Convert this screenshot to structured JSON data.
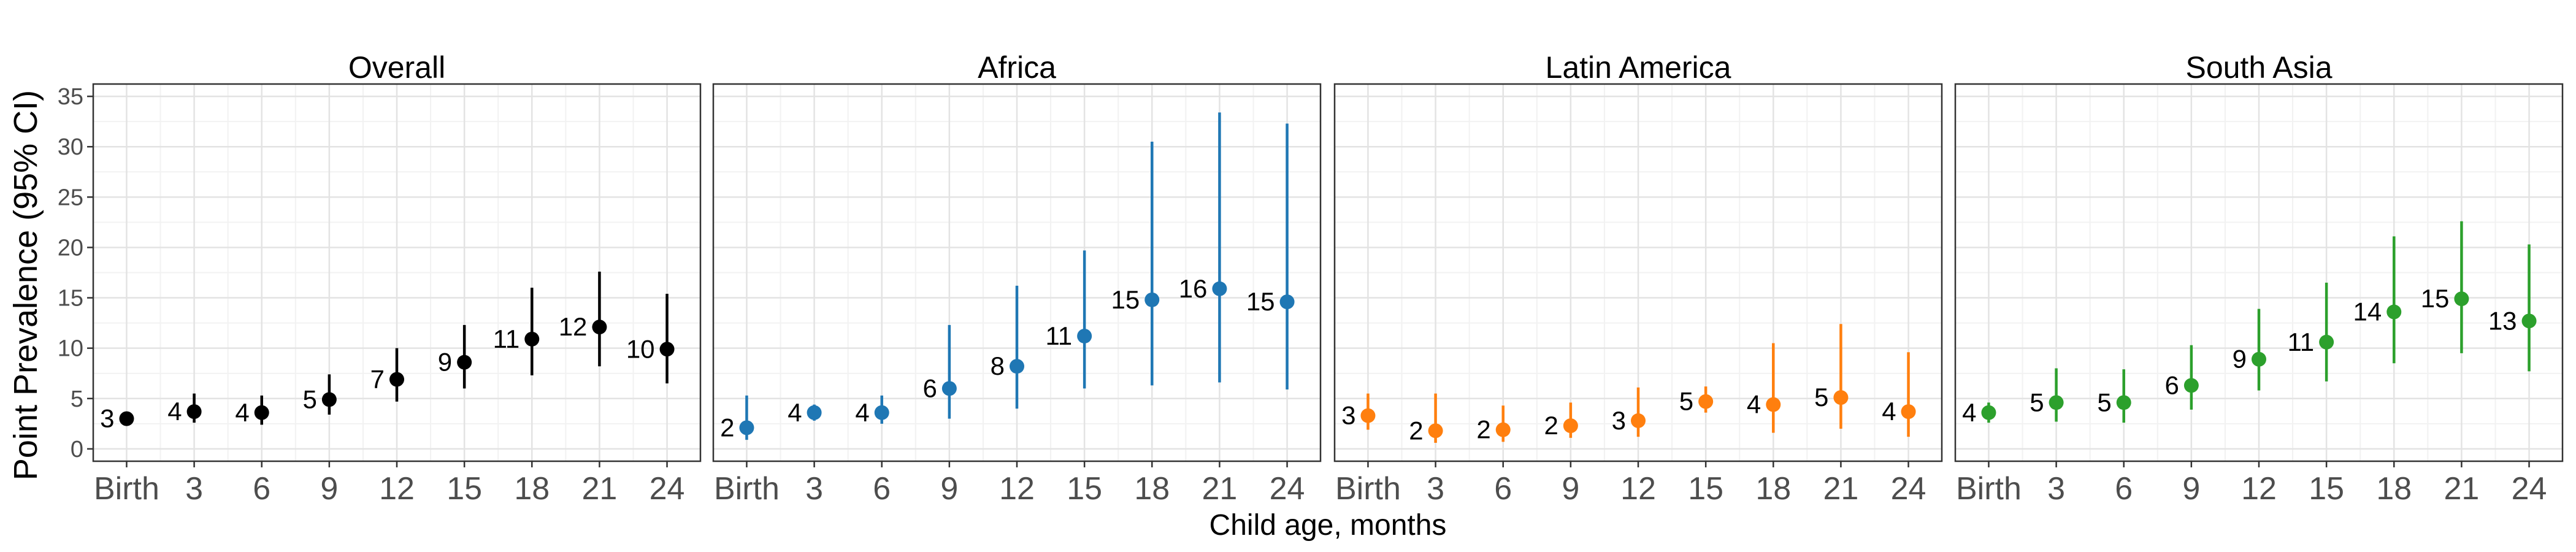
{
  "figure": {
    "ylabel": "Point Prevalence (95% CI)",
    "xlabel": "Child age, months"
  },
  "chart_data": [
    {
      "type": "scatter",
      "title": "Overall",
      "color": "#000000",
      "x": [
        "Birth",
        "3",
        "6",
        "9",
        "12",
        "15",
        "18",
        "21",
        "24"
      ],
      "y": [
        3.0,
        3.7,
        3.6,
        4.9,
        6.9,
        8.6,
        10.9,
        12.1,
        9.9
      ],
      "ci_low": [
        2.5,
        2.6,
        2.4,
        3.4,
        4.7,
        6.0,
        7.3,
        8.2,
        6.5
      ],
      "ci_high": [
        3.5,
        5.5,
        5.3,
        7.4,
        10.0,
        12.3,
        16.0,
        17.6,
        15.4
      ],
      "labels": [
        "3",
        "4",
        "4",
        "5",
        "7",
        "9",
        "11",
        "12",
        "10"
      ],
      "ylim": [
        0,
        35
      ],
      "yticks": [
        0,
        5,
        10,
        15,
        20,
        25,
        30,
        35
      ],
      "grid": true
    },
    {
      "type": "scatter",
      "title": "Africa",
      "color": "#1f77b4",
      "x": [
        "Birth",
        "3",
        "6",
        "9",
        "12",
        "15",
        "18",
        "21",
        "24"
      ],
      "y": [
        2.1,
        3.6,
        3.6,
        6.0,
        8.2,
        11.2,
        14.8,
        15.9,
        14.6
      ],
      "ci_low": [
        0.9,
        2.8,
        2.5,
        3.0,
        4.0,
        6.0,
        6.3,
        6.6,
        5.9
      ],
      "ci_high": [
        5.3,
        4.4,
        5.3,
        12.3,
        16.2,
        19.7,
        30.5,
        33.4,
        32.3
      ],
      "labels": [
        "2",
        "4",
        "4",
        "6",
        "8",
        "11",
        "15",
        "16",
        "15"
      ],
      "ylim": [
        0,
        35
      ],
      "yticks": [
        0,
        5,
        10,
        15,
        20,
        25,
        30,
        35
      ],
      "grid": true
    },
    {
      "type": "scatter",
      "title": "Latin America",
      "color": "#ff7f0e",
      "x": [
        "Birth",
        "3",
        "6",
        "9",
        "12",
        "15",
        "18",
        "21",
        "24"
      ],
      "y": [
        3.3,
        1.8,
        1.9,
        2.3,
        2.8,
        4.7,
        4.4,
        5.1,
        3.7
      ],
      "ci_low": [
        1.9,
        0.6,
        0.7,
        1.1,
        1.2,
        3.6,
        1.6,
        2.0,
        1.2
      ],
      "ci_high": [
        5.5,
        5.5,
        4.3,
        4.6,
        6.1,
        6.2,
        10.5,
        12.4,
        9.6
      ],
      "labels": [
        "3",
        "2",
        "2",
        "2",
        "3",
        "5",
        "4",
        "5",
        "4"
      ],
      "ylim": [
        0,
        35
      ],
      "yticks": [
        0,
        5,
        10,
        15,
        20,
        25,
        30,
        35
      ],
      "grid": true
    },
    {
      "type": "scatter",
      "title": "South Asia",
      "color": "#2ca02c",
      "x": [
        "Birth",
        "3",
        "6",
        "9",
        "12",
        "15",
        "18",
        "21",
        "24"
      ],
      "y": [
        3.6,
        4.6,
        4.6,
        6.3,
        8.9,
        10.6,
        13.6,
        14.9,
        12.7
      ],
      "ci_low": [
        2.6,
        2.7,
        2.6,
        3.9,
        5.8,
        6.7,
        8.5,
        9.5,
        7.7
      ],
      "ci_high": [
        4.6,
        8.0,
        7.9,
        10.3,
        13.9,
        16.5,
        21.1,
        22.6,
        20.3
      ],
      "labels": [
        "4",
        "5",
        "5",
        "6",
        "9",
        "11",
        "14",
        "15",
        "13"
      ],
      "ylim": [
        0,
        35
      ],
      "yticks": [
        0,
        5,
        10,
        15,
        20,
        25,
        30,
        35
      ],
      "grid": true
    }
  ]
}
